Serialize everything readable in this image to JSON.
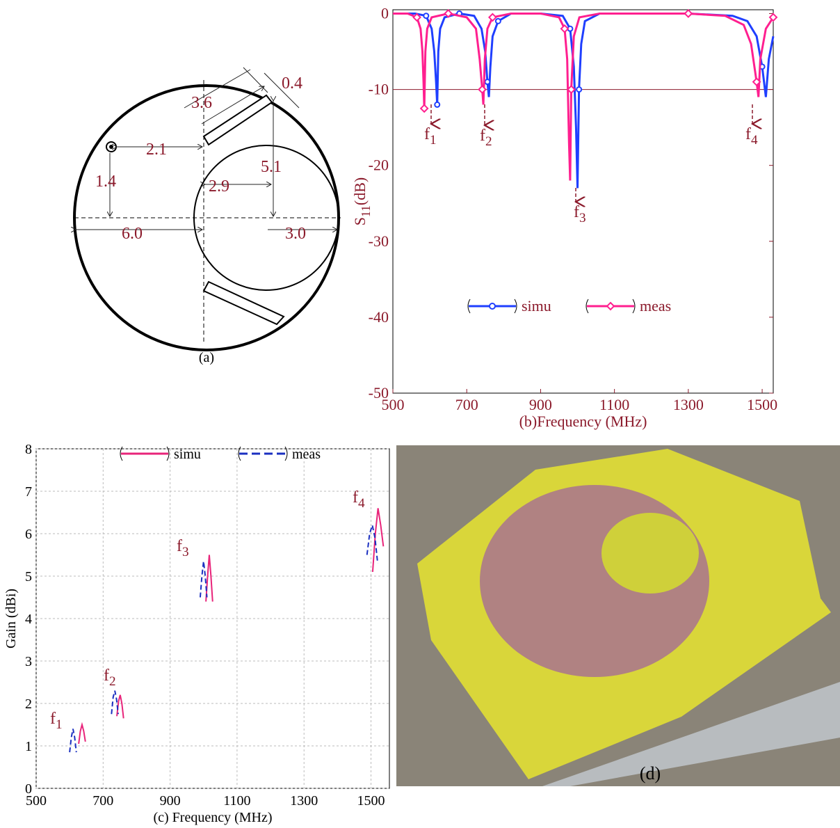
{
  "diagram": {
    "labels": [
      "3.6",
      "0.4",
      "2.1",
      "5.1",
      "1.4",
      "2.9",
      "6.0",
      "3.0"
    ],
    "caption": "(a)"
  },
  "photo": {
    "caption": "(d)"
  },
  "chart_data": [
    {
      "type": "line",
      "ylabel": {
        "main": "S",
        "sub": "11",
        "unit": "(dB)"
      },
      "xlabel": "(b)Frequency (MHz)",
      "xlim": [
        500,
        1530
      ],
      "ylim": [
        -50,
        0.5
      ],
      "xticks": [
        500,
        700,
        900,
        1100,
        1300,
        1500
      ],
      "yticks": [
        0,
        -10,
        -20,
        -30,
        -40,
        -50
      ],
      "hline": -10,
      "hline_color": "#8b1a2b",
      "grid": false,
      "annotations": [
        {
          "main": "f",
          "sub": "1"
        },
        {
          "main": "f",
          "sub": "2"
        },
        {
          "main": "f",
          "sub": "3"
        },
        {
          "main": "f",
          "sub": "4"
        }
      ],
      "series": [
        {
          "name": "simu",
          "color": "#1f3fff",
          "marker": "circle",
          "x": [
            500,
            560,
            590,
            605,
            612,
            617,
            620,
            623,
            628,
            640,
            680,
            720,
            740,
            750,
            756,
            760,
            764,
            770,
            785,
            820,
            900,
            960,
            980,
            990,
            996,
            1000,
            1004,
            1010,
            1020,
            1060,
            1300,
            1420,
            1460,
            1485,
            1500,
            1510,
            1518,
            1530
          ],
          "values": [
            0,
            0,
            -0.3,
            -2,
            -5,
            -9,
            -12,
            -5,
            -2,
            -0.5,
            0,
            -0.3,
            -2,
            -5,
            -9,
            -11,
            -7,
            -3,
            -1,
            0,
            0,
            -0.3,
            -2,
            -7,
            -15,
            -23,
            -10,
            -4,
            -1,
            0,
            0,
            -0.3,
            -1,
            -3,
            -7,
            -11,
            -6,
            -3
          ]
        },
        {
          "name": "meas",
          "color": "#ff1f8f",
          "marker": "diamond",
          "x": [
            500,
            540,
            565,
            575,
            580,
            583,
            585,
            588,
            593,
            605,
            650,
            700,
            725,
            735,
            742,
            745,
            749,
            756,
            770,
            820,
            900,
            950,
            965,
            972,
            977,
            980,
            983,
            990,
            1005,
            1060,
            1300,
            1400,
            1450,
            1470,
            1485,
            1490,
            1495,
            1510,
            1530
          ],
          "values": [
            0,
            0,
            -0.5,
            -2,
            -5,
            -9,
            -12.5,
            -5,
            -2,
            -0.5,
            0,
            -0.5,
            -2,
            -6,
            -10,
            -12,
            -6,
            -2,
            -0.5,
            0,
            0,
            -0.5,
            -2,
            -6,
            -17,
            -22,
            -10,
            -3,
            -0.5,
            0,
            0,
            -0.3,
            -1.5,
            -4,
            -9,
            -11,
            -6,
            -2,
            -0.5
          ]
        }
      ]
    },
    {
      "type": "line",
      "ylabel": "Gain (dBi)",
      "xlabel": "(c) Frequency (MHz)",
      "xlim": [
        500,
        1555
      ],
      "ylim": [
        0,
        8
      ],
      "xticks": [
        500,
        700,
        900,
        1100,
        1300,
        1500
      ],
      "yticks": [
        0,
        1,
        2,
        3,
        4,
        5,
        6,
        7,
        8
      ],
      "grid": true,
      "annotations": [
        {
          "main": "f",
          "sub": "1"
        },
        {
          "main": "f",
          "sub": "2"
        },
        {
          "main": "f",
          "sub": "3"
        },
        {
          "main": "f",
          "sub": "4"
        }
      ],
      "series": [
        {
          "name": "simu",
          "color": "#e8247a",
          "dash": false,
          "x": [
            627,
            632,
            637,
            642,
            647,
            null,
            741,
            746,
            751,
            756,
            761,
            null,
            1007,
            1012,
            1017,
            1022,
            1027,
            null,
            1505,
            1513,
            1521,
            1529,
            1537
          ],
          "values": [
            1.05,
            1.35,
            1.5,
            1.35,
            1.1,
            null,
            1.7,
            2.05,
            2.2,
            2.0,
            1.65,
            null,
            4.4,
            5.0,
            5.5,
            5.0,
            4.4,
            null,
            5.1,
            6.0,
            6.6,
            6.2,
            5.7
          ]
        },
        {
          "name": "meas",
          "color": "#1a2fc0",
          "dash": true,
          "x": [
            600,
            605,
            610,
            615,
            620,
            null,
            725,
            730,
            735,
            740,
            745,
            null,
            990,
            995,
            1000,
            1005,
            1010,
            null,
            1488,
            1496,
            1504,
            1512,
            1520
          ],
          "values": [
            0.85,
            1.2,
            1.4,
            1.2,
            0.85,
            null,
            1.75,
            2.15,
            2.3,
            2.1,
            1.75,
            null,
            4.5,
            5.0,
            5.35,
            5.0,
            4.5,
            null,
            5.5,
            6.0,
            6.2,
            5.9,
            5.3
          ]
        }
      ]
    }
  ]
}
